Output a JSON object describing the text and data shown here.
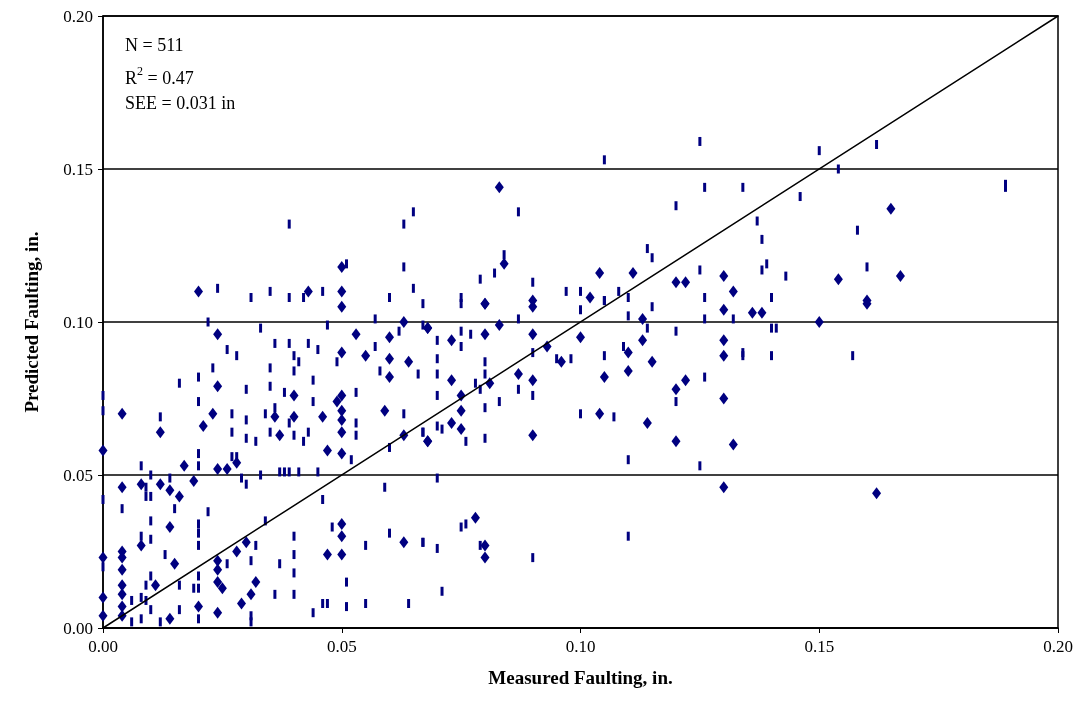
{
  "chart_data": {
    "type": "scatter",
    "xlabel": "Measured Faulting, in.",
    "ylabel": "Predicted Faulting, in.",
    "annotations": [
      "N = 511",
      "R$^{2}$ = 0.47",
      "SEE = 0.031 in"
    ],
    "xlim": [
      0,
      0.2
    ],
    "ylim": [
      0,
      0.2
    ],
    "xticks": [
      {
        "value": 0,
        "label": "0.00"
      },
      {
        "value": 0.05,
        "label": "0.05"
      },
      {
        "value": 0.1,
        "label": "0.10"
      },
      {
        "value": 0.15,
        "label": "0.15"
      },
      {
        "value": 0.2,
        "label": "0.20"
      }
    ],
    "yticks": [
      {
        "value": 0,
        "label": "0.00"
      },
      {
        "value": 0.05,
        "label": "0.05"
      },
      {
        "value": 0.1,
        "label": "0.10"
      },
      {
        "value": 0.15,
        "label": "0.15"
      },
      {
        "value": 0.2,
        "label": "0.20"
      }
    ],
    "grid": "y",
    "series": [
      {
        "color": "#000080",
        "marker": "diamond",
        "x": [
          0.05,
          0.024,
          0.053,
          0.063,
          0.06,
          0.068,
          0.05,
          0.055,
          0.06,
          0.064,
          0.06,
          0.024,
          0.04,
          0.05,
          0.049,
          0.05,
          0.05,
          0.004,
          0.023,
          0.036,
          0.04,
          0.046,
          0.059,
          0.021,
          0.037,
          0.05,
          0.012,
          0.063,
          0.068,
          0,
          0.047,
          0.05,
          0.017,
          0.028,
          0.024,
          0.026,
          0.004,
          0.008,
          0.012,
          0.014,
          0.016,
          0.019,
          0.014,
          0.05,
          0.05,
          0.008,
          0.03,
          0.063,
          0.004,
          0.004,
          0,
          0.015,
          0.028,
          0.047,
          0.05,
          0.024,
          0.024,
          0.004,
          0.004,
          0.004,
          0.011,
          0.024,
          0.025,
          0.032,
          0.031,
          0,
          0,
          0.004,
          0.02,
          0.029,
          0.024,
          0.014,
          0.004,
          0.068,
          0.073,
          0.08,
          0.083,
          0.09,
          0.09,
          0.08,
          0.1,
          0.093,
          0.096,
          0.11,
          0.113,
          0.113,
          0.115,
          0.11,
          0.13,
          0.13,
          0.13,
          0.073,
          0.081,
          0.087,
          0.09,
          0.105,
          0.12,
          0.122,
          0.075,
          0.075,
          0.073,
          0.075,
          0.068,
          0.09,
          0.104,
          0.114,
          0.12,
          0.132,
          0.13,
          0.13,
          0.078,
          0.08,
          0.08,
          0.083,
          0.084,
          0.104,
          0.111,
          0.12,
          0.122,
          0.13,
          0.132,
          0.08,
          0.09,
          0.102,
          0.02,
          0.043,
          0.05,
          0.05,
          0.165,
          0.154,
          0.167,
          0.16,
          0.136,
          0.138,
          0.15,
          0.16,
          0.162
        ],
        "values": [
          0.105,
          0.096,
          0.096,
          0.1,
          0.095,
          0.098,
          0.09,
          0.089,
          0.088,
          0.087,
          0.082,
          0.079,
          0.076,
          0.076,
          0.074,
          0.071,
          0.068,
          0.07,
          0.07,
          0.069,
          0.069,
          0.069,
          0.071,
          0.066,
          0.063,
          0.064,
          0.064,
          0.063,
          0.061,
          0.058,
          0.058,
          0.057,
          0.053,
          0.054,
          0.052,
          0.052,
          0.046,
          0.047,
          0.047,
          0.045,
          0.043,
          0.048,
          0.033,
          0.034,
          0.03,
          0.027,
          0.028,
          0.028,
          0.025,
          0.023,
          0.023,
          0.021,
          0.025,
          0.024,
          0.024,
          0.022,
          0.019,
          0.019,
          0.014,
          0.011,
          0.014,
          0.015,
          0.013,
          0.015,
          0.011,
          0.01,
          0.004,
          0.007,
          0.007,
          0.008,
          0.005,
          0.003,
          0.004,
          0.098,
          0.094,
          0.096,
          0.099,
          0.096,
          0.105,
          0.106,
          0.095,
          0.092,
          0.087,
          0.09,
          0.101,
          0.094,
          0.087,
          0.084,
          0.104,
          0.094,
          0.089,
          0.081,
          0.08,
          0.083,
          0.081,
          0.082,
          0.078,
          0.081,
          0.076,
          0.071,
          0.067,
          0.065,
          0.061,
          0.063,
          0.07,
          0.067,
          0.061,
          0.06,
          0.075,
          0.046,
          0.036,
          0.027,
          0.023,
          0.144,
          0.119,
          0.116,
          0.116,
          0.113,
          0.113,
          0.115,
          0.11,
          0.106,
          0.107,
          0.108,
          0.11,
          0.11,
          0.11,
          0.118,
          0.137,
          0.114,
          0.115,
          0.107,
          0.103,
          0.103,
          0.1,
          0.106,
          0.044
        ]
      },
      {
        "type": "scatter",
        "color": "#000080",
        "marker": "square",
        "x": [
          0.022,
          0.033,
          0.047,
          0.057,
          0.062,
          0.026,
          0.028,
          0.036,
          0.039,
          0.043,
          0.045,
          0.04,
          0.041,
          0.049,
          0.057,
          0.023,
          0.035,
          0.04,
          0.058,
          0.066,
          0.016,
          0.02,
          0.03,
          0.035,
          0.038,
          0.044,
          0.053,
          0.02,
          0.027,
          0.036,
          0.044,
          0.03,
          0.034,
          0.039,
          0.053,
          0.063,
          0.012,
          0.027,
          0.03,
          0.035,
          0.04,
          0.043,
          0.053,
          0.032,
          0.042,
          0.06,
          0.067,
          0.02,
          0.027,
          0.028,
          0.008,
          0.02,
          0.01,
          0.014,
          0.033,
          0.037,
          0.038,
          0.039,
          0.041,
          0.045,
          0.052,
          0.029,
          0.03,
          0.009,
          0.009,
          0.01,
          0.059,
          0,
          0.004,
          0.015,
          0.022,
          0.046,
          0.01,
          0.02,
          0.034,
          0.008,
          0.01,
          0.02,
          0.04,
          0.048,
          0.06,
          0.02,
          0.032,
          0.013,
          0.04,
          0.055,
          0.067,
          0,
          0.026,
          0.031,
          0.037,
          0.01,
          0.02,
          0.04,
          0.051,
          0.009,
          0.016,
          0.019,
          0.02,
          0.006,
          0.008,
          0.009,
          0.036,
          0.04,
          0.046,
          0.047,
          0.051,
          0.055,
          0.064,
          0.01,
          0.016,
          0.031,
          0.044,
          0.006,
          0.008,
          0.012,
          0.02,
          0.031,
          0,
          0,
          0.075,
          0.087,
          0.1,
          0.105,
          0.115,
          0.11,
          0.126,
          0.132,
          0.075,
          0.077,
          0.07,
          0.075,
          0.114,
          0.12,
          0.109,
          0.07,
          0.08,
          0.09,
          0.095,
          0.098,
          0.105,
          0.134,
          0.07,
          0.08,
          0.078,
          0.126,
          0.07,
          0.079,
          0.087,
          0.09,
          0.083,
          0.08,
          0.1,
          0.107,
          0.12,
          0.067,
          0.07,
          0.071,
          0.076,
          0.08,
          0.11,
          0.125,
          0.07,
          0.075,
          0.076,
          0.067,
          0.07,
          0.079,
          0.09,
          0.071,
          0.11,
          0.125,
          0.126,
          0.134,
          0.087,
          0.12,
          0.114,
          0.084,
          0.082,
          0.079,
          0.09,
          0.097,
          0.1,
          0.105,
          0.108,
          0.11,
          0.115,
          0.125,
          0.126,
          0.067,
          0.075,
          0.105,
          0.065,
          0.063,
          0.039,
          0.051,
          0.063,
          0.065,
          0.024,
          0.031,
          0.035,
          0.039,
          0.042,
          0.046,
          0.06,
          0.067,
          0.14,
          0.141,
          0.157,
          0.134,
          0.14,
          0.15,
          0.154,
          0.162,
          0.189,
          0.189,
          0.146,
          0.137,
          0.138,
          0.158,
          0.138,
          0.139,
          0.143,
          0.16,
          0.14
        ],
        "values": [
          0.1,
          0.098,
          0.099,
          0.101,
          0.097,
          0.091,
          0.089,
          0.093,
          0.093,
          0.093,
          0.091,
          0.089,
          0.087,
          0.087,
          0.092,
          0.085,
          0.085,
          0.084,
          0.084,
          0.083,
          0.08,
          0.082,
          0.078,
          0.079,
          0.077,
          0.081,
          0.077,
          0.074,
          0.07,
          0.072,
          0.074,
          0.068,
          0.07,
          0.067,
          0.067,
          0.07,
          0.069,
          0.064,
          0.062,
          0.064,
          0.063,
          0.064,
          0.063,
          0.061,
          0.061,
          0.059,
          0.064,
          0.057,
          0.056,
          0.056,
          0.053,
          0.053,
          0.05,
          0.049,
          0.05,
          0.051,
          0.051,
          0.051,
          0.051,
          0.051,
          0.055,
          0.049,
          0.047,
          0.046,
          0.043,
          0.043,
          0.046,
          0.042,
          0.039,
          0.039,
          0.038,
          0.042,
          0.035,
          0.034,
          0.035,
          0.03,
          0.029,
          0.031,
          0.03,
          0.033,
          0.031,
          0.027,
          0.027,
          0.024,
          0.024,
          0.027,
          0.028,
          0.02,
          0.021,
          0.022,
          0.021,
          0.017,
          0.017,
          0.018,
          0.015,
          0.014,
          0.014,
          0.013,
          0.013,
          0.009,
          0.01,
          0.009,
          0.011,
          0.011,
          0.008,
          0.008,
          0.007,
          0.008,
          0.008,
          0.006,
          0.006,
          0.004,
          0.005,
          0.002,
          0.003,
          0.002,
          0.003,
          0.002,
          0.071,
          0.076,
          0.106,
          0.101,
          0.104,
          0.107,
          0.105,
          0.102,
          0.101,
          0.101,
          0.097,
          0.096,
          0.094,
          0.092,
          0.098,
          0.097,
          0.092,
          0.088,
          0.087,
          0.09,
          0.088,
          0.088,
          0.089,
          0.09,
          0.083,
          0.083,
          0.08,
          0.082,
          0.076,
          0.078,
          0.078,
          0.076,
          0.074,
          0.072,
          0.07,
          0.069,
          0.074,
          0.064,
          0.066,
          0.065,
          0.061,
          0.062,
          0.055,
          0.053,
          0.049,
          0.033,
          0.034,
          0.028,
          0.026,
          0.027,
          0.023,
          0.012,
          0.03,
          0.159,
          0.144,
          0.144,
          0.136,
          0.138,
          0.124,
          0.122,
          0.116,
          0.114,
          0.113,
          0.11,
          0.11,
          0.107,
          0.11,
          0.108,
          0.121,
          0.117,
          0.108,
          0.106,
          0.108,
          0.153,
          0.136,
          0.132,
          0.132,
          0.119,
          0.118,
          0.111,
          0.111,
          0.108,
          0.11,
          0.108,
          0.108,
          0.11,
          0.108,
          0.099,
          0.098,
          0.098,
          0.089,
          0.089,
          0.089,
          0.156,
          0.15,
          0.158,
          0.145,
          0.144,
          0.141,
          0.133,
          0.127,
          0.13,
          0.117,
          0.119,
          0.115,
          0.118,
          0.108
        ]
      },
      {
        "type": "line",
        "color": "#000000",
        "marker": "none",
        "line_style": "solid",
        "x": [
          0,
          0.2
        ],
        "values": [
          0,
          0.2
        ]
      }
    ]
  }
}
